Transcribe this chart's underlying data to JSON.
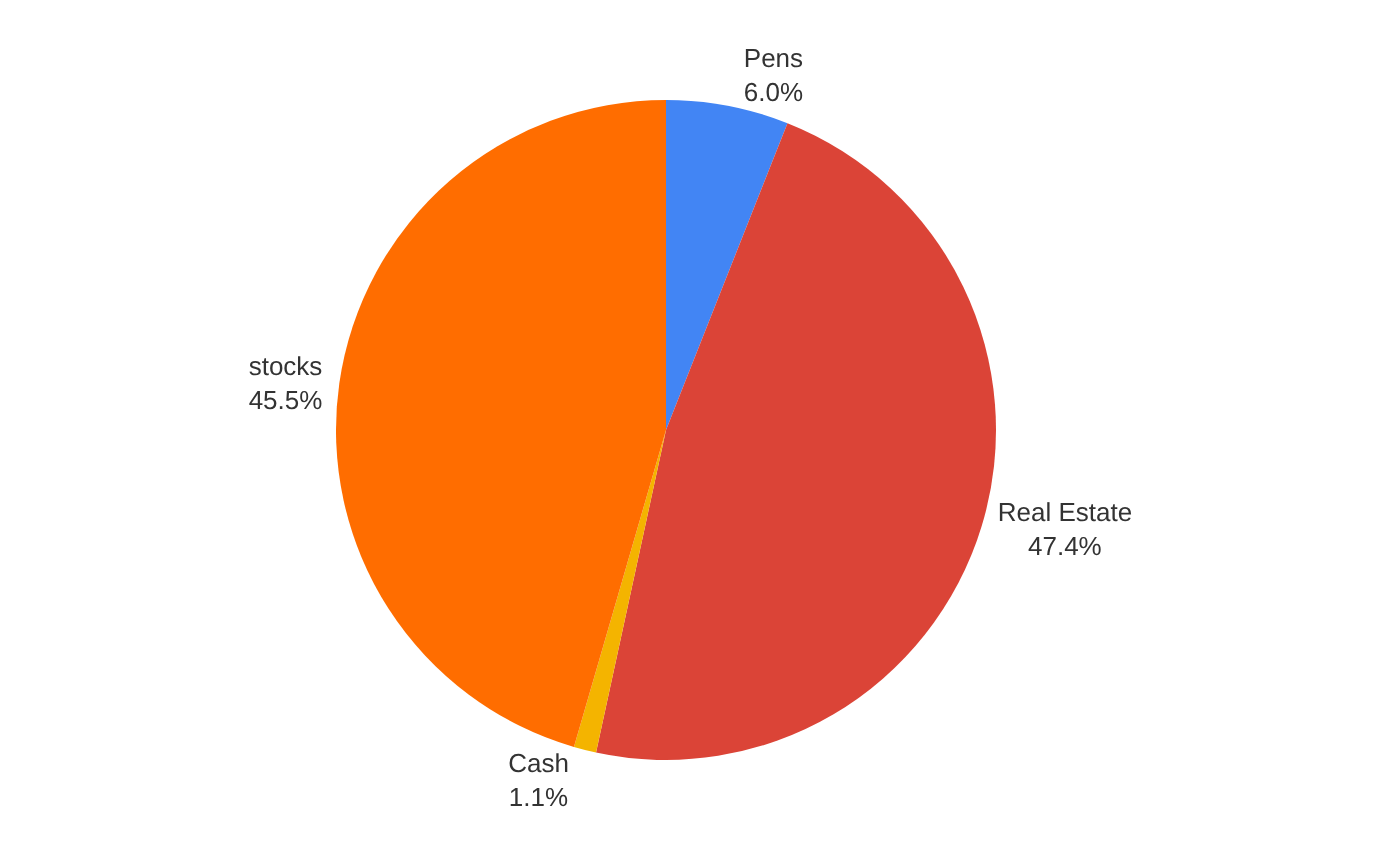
{
  "chart_data": {
    "type": "pie",
    "categories": [
      "Pens",
      "Real Estate",
      "Cash",
      "stocks"
    ],
    "values": [
      6.0,
      47.4,
      1.1,
      45.5
    ],
    "value_labels": [
      "6.0%",
      "47.4%",
      "1.1%",
      "45.5%"
    ],
    "colors": [
      "#4285f4",
      "#db4437",
      "#f4b400",
      "#ff6d00"
    ],
    "legend": false
  }
}
